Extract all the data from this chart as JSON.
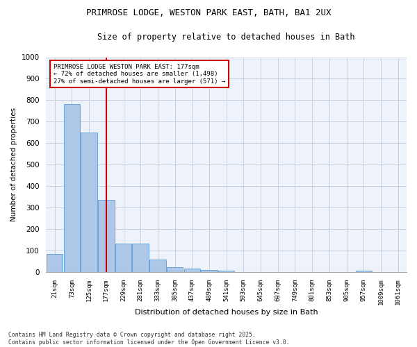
{
  "title": "PRIMROSE LODGE, WESTON PARK EAST, BATH, BA1 2UX",
  "subtitle": "Size of property relative to detached houses in Bath",
  "xlabel": "Distribution of detached houses by size in Bath",
  "ylabel": "Number of detached properties",
  "categories": [
    "21sqm",
    "73sqm",
    "125sqm",
    "177sqm",
    "229sqm",
    "281sqm",
    "333sqm",
    "385sqm",
    "437sqm",
    "489sqm",
    "541sqm",
    "593sqm",
    "645sqm",
    "697sqm",
    "749sqm",
    "801sqm",
    "853sqm",
    "905sqm",
    "957sqm",
    "1009sqm",
    "1061sqm"
  ],
  "values": [
    83,
    783,
    648,
    335,
    133,
    133,
    58,
    22,
    18,
    10,
    8,
    0,
    0,
    0,
    0,
    0,
    0,
    0,
    8,
    0,
    0
  ],
  "bar_color": "#aec6e8",
  "bar_edge_color": "#5b9bd5",
  "red_line_index": 3,
  "annotation_text": "PRIMROSE LODGE WESTON PARK EAST: 177sqm\n← 72% of detached houses are smaller (1,498)\n27% of semi-detached houses are larger (571) →",
  "annotation_box_color": "#ffffff",
  "annotation_box_edge": "#cc0000",
  "red_line_color": "#cc0000",
  "grid_color": "#c8d0e0",
  "background_color": "#eef2fb",
  "footer": "Contains HM Land Registry data © Crown copyright and database right 2025.\nContains public sector information licensed under the Open Government Licence v3.0.",
  "ylim": [
    0,
    1000
  ],
  "yticks": [
    0,
    100,
    200,
    300,
    400,
    500,
    600,
    700,
    800,
    900,
    1000
  ],
  "fig_width": 6.0,
  "fig_height": 5.0,
  "dpi": 100
}
